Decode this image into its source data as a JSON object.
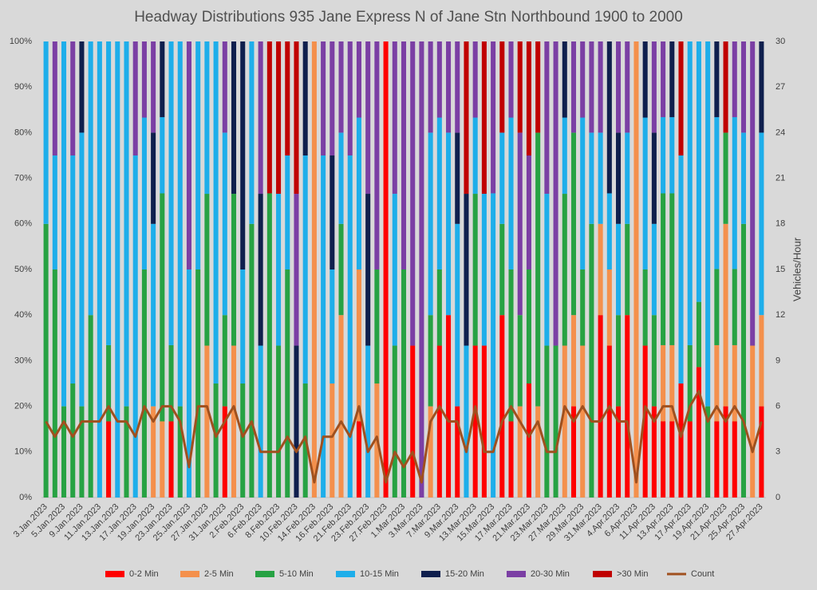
{
  "chart_data": {
    "type": "bar",
    "stacked": true,
    "title": "Headway Distributions 935 Jane Express  N of Jane Stn Northbound 1900 to 2000",
    "y2_label": "Vehicles/Hour",
    "categories": [
      "3.Jan.2023",
      null,
      "5.Jan.2023",
      null,
      "9.Jan.2023",
      null,
      "11.Jan.2023",
      null,
      "13.Jan.2023",
      null,
      "17.Jan.2023",
      null,
      "19.Jan.2023",
      null,
      "23.Jan.2023",
      null,
      "25.Jan.2023",
      null,
      "27.Jan.2023",
      null,
      "31.Jan.2023",
      null,
      "2.Feb.2023",
      null,
      "6.Feb.2023",
      null,
      "8.Feb.2023",
      null,
      "10.Feb.2023",
      null,
      "14.Feb.2023",
      null,
      "16.Feb.2023",
      null,
      "21.Feb.2023",
      null,
      "23.Feb.2023",
      null,
      "27.Feb.2023",
      null,
      "1.Mar.2023",
      null,
      "3.Mar.2023",
      null,
      "7.Mar.2023",
      null,
      "9.Mar.2023",
      null,
      "13.Mar.2023",
      null,
      "15.Mar.2023",
      null,
      "17.Mar.2023",
      null,
      "21.Mar.2023",
      null,
      "23.Mar.2023",
      null,
      "27.Mar.2023",
      null,
      "29.Mar.2023",
      null,
      "31.Mar.2023",
      null,
      "4.Apr.2023",
      null,
      "6.Apr.2023",
      null,
      "11.Apr.2023",
      null,
      "13.Apr.2023",
      null,
      "17.Apr.2023",
      null,
      "19.Apr.2023",
      null,
      "21.Apr.2023",
      null,
      "25.Apr.2023",
      null,
      "27.Apr.2023"
    ],
    "series": [
      {
        "name": "0-2 Min",
        "color": "#ff0000",
        "values": [
          0,
          0,
          0,
          0,
          0,
          0,
          0,
          16.7,
          0,
          0,
          0,
          0,
          0,
          0,
          16.7,
          0,
          0,
          0,
          0,
          0,
          20,
          0,
          0,
          0,
          0,
          0,
          0,
          0,
          0,
          0,
          0,
          0,
          0,
          0,
          0,
          16.7,
          0,
          0,
          100,
          0,
          0,
          33.3,
          0,
          0,
          33.3,
          40,
          20,
          0,
          33.3,
          33.3,
          0,
          40,
          16.7,
          0,
          25,
          0,
          0,
          0,
          0,
          20,
          0,
          0,
          40,
          33.3,
          20,
          40,
          0,
          33.3,
          20,
          16.7,
          16.7,
          25,
          16.7,
          28.6,
          0,
          16.7,
          20,
          16.7,
          0,
          0,
          20
        ]
      },
      {
        "name": "2-5 Min",
        "color": "#f4904c",
        "values": [
          0,
          0,
          0,
          0,
          0,
          0,
          0,
          0,
          0,
          0,
          0,
          0,
          20,
          16.7,
          0,
          0,
          0,
          0,
          33.3,
          0,
          0,
          33.3,
          0,
          0,
          0,
          0,
          0,
          0,
          0,
          0,
          100,
          0,
          25,
          40,
          0,
          33.3,
          0,
          25,
          0,
          0,
          0,
          0,
          0,
          20,
          0,
          0,
          0,
          0,
          0,
          0,
          0,
          0,
          0,
          20,
          0,
          20,
          0,
          0,
          33.3,
          20,
          33.3,
          0,
          20,
          16.7,
          0,
          0,
          100,
          0,
          0,
          16.7,
          16.7,
          0,
          0,
          0,
          0,
          16.7,
          40,
          16.7,
          0,
          33.3,
          20
        ]
      },
      {
        "name": "5-10 Min",
        "color": "#27a243",
        "values": [
          60,
          50,
          20,
          25,
          20,
          40,
          0,
          16.7,
          0,
          20,
          0,
          50,
          0,
          50,
          16.7,
          20,
          0,
          50,
          33.3,
          25,
          20,
          33.3,
          25,
          60,
          0,
          66.7,
          33.3,
          50,
          0,
          25,
          0,
          0,
          0,
          20,
          0,
          0,
          0,
          25,
          0,
          33.3,
          50,
          0,
          0,
          20,
          16.7,
          0,
          0,
          0,
          33.3,
          0,
          0,
          20,
          33.3,
          20,
          25,
          60,
          33.3,
          33.3,
          33.3,
          40,
          16.7,
          60,
          0,
          0,
          20,
          20,
          0,
          16.7,
          20,
          33.3,
          33.3,
          0,
          16.7,
          14.3,
          20,
          16.7,
          20,
          16.7,
          60,
          0,
          0
        ]
      },
      {
        "name": "10-15 Min",
        "color": "#1eaeea",
        "values": [
          40,
          25,
          80,
          50,
          60,
          60,
          100,
          66.6,
          100,
          80,
          75,
          33.3,
          40,
          16.7,
          66.6,
          80,
          50,
          50,
          33.4,
          75,
          40,
          0,
          25,
          40,
          33.3,
          0,
          33.3,
          25,
          0,
          50,
          0,
          75,
          25,
          20,
          75,
          33.3,
          33.3,
          0,
          0,
          33.3,
          0,
          0,
          0,
          40,
          33.3,
          40,
          40,
          33.3,
          16.7,
          33.3,
          66.7,
          20,
          33.3,
          0,
          0,
          0,
          33.3,
          0,
          16.7,
          0,
          33.3,
          20,
          20,
          16.7,
          20,
          20,
          0,
          33.3,
          20,
          16.7,
          16.7,
          50,
          66.6,
          57.1,
          80,
          33.3,
          0,
          33.3,
          20,
          0,
          40
        ]
      },
      {
        "name": "15-20 Min",
        "color": "#0f1f4d",
        "values": [
          0,
          0,
          0,
          0,
          20,
          0,
          0,
          0,
          0,
          0,
          0,
          0,
          20,
          16.6,
          0,
          0,
          0,
          0,
          0,
          0,
          0,
          33.4,
          50,
          0,
          33.3,
          0,
          0,
          0,
          33.3,
          25,
          0,
          0,
          25,
          0,
          0,
          0,
          33.3,
          0,
          0,
          0,
          0,
          0,
          0,
          0,
          0,
          0,
          20,
          33.3,
          0,
          0,
          0,
          0,
          0,
          0,
          0,
          0,
          0,
          0,
          16.7,
          0,
          0,
          0,
          0,
          33.3,
          20,
          0,
          0,
          16.7,
          20,
          0,
          16.6,
          0,
          0,
          0,
          0,
          16.6,
          0,
          0,
          0,
          0,
          20
        ]
      },
      {
        "name": "20-30 Min",
        "color": "#7b3fa4",
        "values": [
          0,
          25,
          0,
          25,
          0,
          0,
          0,
          0,
          0,
          0,
          25,
          16.7,
          20,
          0,
          0,
          0,
          50,
          0,
          0,
          0,
          20,
          0,
          0,
          0,
          33.4,
          0,
          0,
          0,
          33.3,
          0,
          0,
          25,
          25,
          20,
          25,
          16.7,
          33.4,
          50,
          0,
          33.4,
          50,
          66.7,
          100,
          20,
          16.7,
          20,
          20,
          0,
          16.7,
          0,
          33.3,
          0,
          16.7,
          40,
          25,
          0,
          33.4,
          66.7,
          0,
          20,
          16.7,
          20,
          20,
          0,
          20,
          20,
          0,
          0,
          20,
          16.6,
          0,
          0,
          0,
          0,
          0,
          0,
          0,
          16.6,
          20,
          66.7,
          0
        ]
      },
      {
        "name": ">30 Min",
        "color": "#c00000",
        "values": [
          0,
          0,
          0,
          0,
          0,
          0,
          0,
          0,
          0,
          0,
          0,
          0,
          0,
          0,
          0,
          0,
          0,
          0,
          0,
          0,
          0,
          0,
          0,
          0,
          0,
          33.3,
          33.4,
          25,
          33.4,
          0,
          0,
          0,
          0,
          0,
          0,
          0,
          0,
          0,
          0,
          0,
          0,
          0,
          0,
          0,
          0,
          0,
          0,
          33.4,
          0,
          33.4,
          0,
          20,
          0,
          20,
          25,
          20,
          0,
          0,
          0,
          0,
          0,
          0,
          0,
          0,
          0,
          0,
          0,
          0,
          0,
          0,
          0,
          25,
          0,
          0,
          0,
          0,
          20,
          0,
          0,
          0,
          0
        ]
      },
      {
        "name": "Count",
        "color": "#a0501e",
        "type": "line",
        "axis": "y2",
        "values": [
          5,
          4,
          5,
          4,
          5,
          5,
          5,
          6,
          5,
          5,
          4,
          6,
          5,
          6,
          6,
          5,
          2,
          6,
          6,
          4,
          5,
          6,
          4,
          5,
          3,
          3,
          3,
          4,
          3,
          4,
          1,
          4,
          4,
          5,
          4,
          6,
          3,
          4,
          1,
          3,
          2,
          3,
          1,
          5,
          6,
          5,
          5,
          3,
          6,
          3,
          3,
          5,
          6,
          5,
          4,
          5,
          3,
          3,
          6,
          5,
          6,
          5,
          5,
          6,
          5,
          5,
          1,
          6,
          5,
          6,
          6,
          4,
          6,
          7,
          5,
          6,
          5,
          6,
          5,
          3,
          5
        ]
      }
    ],
    "ylim": [
      0,
      100
    ],
    "yticks": [
      {
        "value": 0,
        "label": "0%"
      },
      {
        "value": 10,
        "label": "10%"
      },
      {
        "value": 20,
        "label": "20%"
      },
      {
        "value": 30,
        "label": "30%"
      },
      {
        "value": 40,
        "label": "40%"
      },
      {
        "value": 50,
        "label": "50%"
      },
      {
        "value": 60,
        "label": "60%"
      },
      {
        "value": 70,
        "label": "70%"
      },
      {
        "value": 80,
        "label": "80%"
      },
      {
        "value": 90,
        "label": "90%"
      },
      {
        "value": 100,
        "label": "100%"
      }
    ],
    "y2lim": [
      0,
      30
    ],
    "y2ticks": [
      0,
      3,
      6,
      9,
      12,
      15,
      18,
      21,
      24,
      27,
      30
    ],
    "legend": "bottom"
  }
}
